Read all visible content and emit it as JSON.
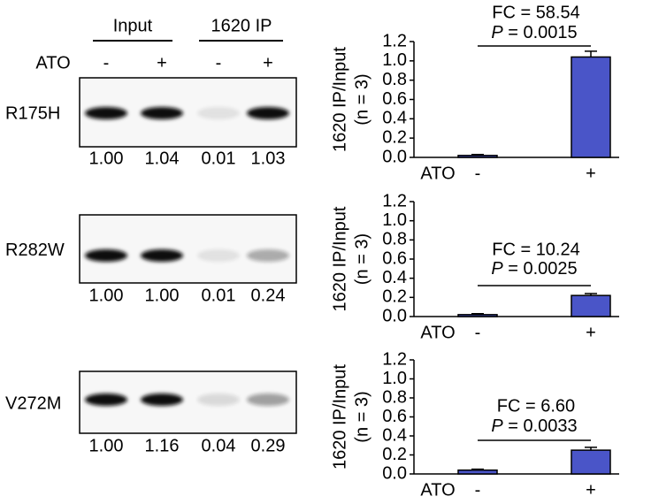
{
  "blots": {
    "groups": [
      "Input",
      "1620 IP"
    ],
    "treatment": "ATO",
    "lanes": [
      "-",
      "+",
      "-",
      "+"
    ],
    "rows": [
      {
        "label": "R175H",
        "quant": [
          "1.00",
          "1.04",
          "0.01",
          "1.03"
        ]
      },
      {
        "label": "R282W",
        "quant": [
          "1.00",
          "1.00",
          "0.01",
          "0.24"
        ]
      },
      {
        "label": "V272M",
        "quant": [
          "1.00",
          "1.16",
          "0.04",
          "0.29"
        ]
      }
    ]
  },
  "chart_data": [
    {
      "type": "bar",
      "ylabel": "1620 IP/Input",
      "ylabel_note": "(n = 3)",
      "xlabel": "ATO",
      "categories": [
        "-",
        "+"
      ],
      "values": [
        0.02,
        1.04
      ],
      "errors": [
        0.01,
        0.06
      ],
      "color": "#4a55c8",
      "ylim": [
        0,
        1.2
      ],
      "yticks": [
        {
          "value": 0,
          "label": "0.0"
        },
        0.2,
        0.4,
        0.6,
        0.8,
        {
          "value": 1,
          "label": "1.0"
        },
        1.2
      ],
      "fc": "FC  = 58.54",
      "p": {
        "symbol": "P",
        "text": " = 0.0015"
      }
    },
    {
      "type": "bar",
      "ylabel": "1620 IP/Input",
      "ylabel_note": "(n = 3)",
      "xlabel": "ATO",
      "categories": [
        "-",
        "+"
      ],
      "values": [
        0.02,
        0.22
      ],
      "errors": [
        0.01,
        0.02
      ],
      "color": "#4a55c8",
      "ylim": [
        0,
        1.2
      ],
      "yticks": [
        {
          "value": 0,
          "label": "0.0"
        },
        0.2,
        0.4,
        0.6,
        0.8,
        {
          "value": 1,
          "label": "1.0"
        },
        1.2
      ],
      "fc": "FC  = 10.24",
      "p": {
        "symbol": "P",
        "text": " = 0.0025"
      }
    },
    {
      "type": "bar",
      "ylabel": "1620 IP/Input",
      "ylabel_note": "(n = 3)",
      "xlabel": "ATO",
      "categories": [
        "-",
        "+"
      ],
      "values": [
        0.04,
        0.25
      ],
      "errors": [
        0.01,
        0.03
      ],
      "color": "#4a55c8",
      "ylim": [
        0,
        1.2
      ],
      "yticks": [
        {
          "value": 0,
          "label": "0.0"
        },
        0.2,
        0.4,
        0.6,
        0.8,
        {
          "value": 1,
          "label": "1.0"
        },
        1.2
      ],
      "fc": "FC  = 6.60",
      "p": {
        "symbol": "P",
        "text": " = 0.0033"
      }
    }
  ]
}
